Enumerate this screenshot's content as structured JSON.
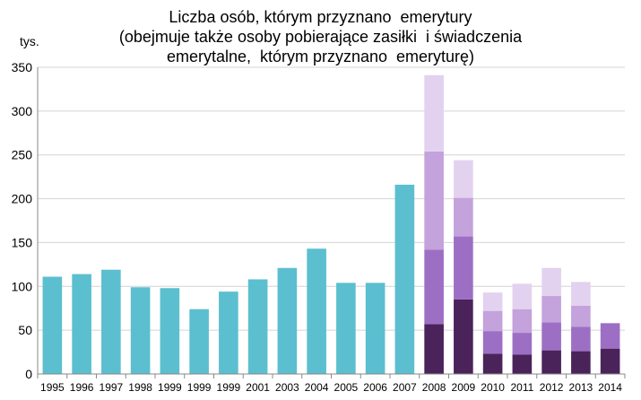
{
  "chart_data": {
    "type": "bar",
    "title_lines": [
      "Liczba osób, którym przyznano  emerytury",
      "(obejmuje także osoby pobierające zasiłki  i świadczenia",
      "emerytalne,  którym przyznano  emeryturę)"
    ],
    "ylabel": "tys.",
    "ylim": [
      0,
      350
    ],
    "yticks": [
      0,
      50,
      100,
      150,
      200,
      250,
      300,
      350
    ],
    "grid": true,
    "legend": "none",
    "categories": [
      "1995",
      "1996",
      "1997",
      "1998",
      "1999",
      "1999",
      "1999",
      "2001",
      "2003",
      "2004",
      "2005",
      "2006",
      "2007",
      "2008",
      "2009",
      "2010",
      "2011",
      "2012",
      "2013",
      "2014"
    ],
    "series": [
      {
        "color": "#5bbfcf",
        "values": [
          111,
          114,
          119,
          99,
          98,
          74,
          94,
          108,
          121,
          143,
          104,
          104,
          216,
          null,
          null,
          null,
          null,
          null,
          null,
          null
        ]
      },
      {
        "color": "#4a235a",
        "values": [
          null,
          null,
          null,
          null,
          null,
          null,
          null,
          null,
          null,
          null,
          null,
          null,
          null,
          57,
          85,
          23,
          22,
          27,
          26,
          29
        ]
      },
      {
        "color": "#9d6fc4",
        "values": [
          null,
          null,
          null,
          null,
          null,
          null,
          null,
          null,
          null,
          null,
          null,
          null,
          null,
          85,
          72,
          26,
          25,
          32,
          28,
          29
        ]
      },
      {
        "color": "#c4a2dc",
        "values": [
          null,
          null,
          null,
          null,
          null,
          null,
          null,
          null,
          null,
          null,
          null,
          null,
          null,
          112,
          44,
          23,
          27,
          30,
          24,
          null
        ]
      },
      {
        "color": "#e2d2ef",
        "values": [
          null,
          null,
          null,
          null,
          null,
          null,
          null,
          null,
          null,
          null,
          null,
          null,
          null,
          87,
          43,
          21,
          29,
          32,
          27,
          null
        ]
      }
    ]
  }
}
